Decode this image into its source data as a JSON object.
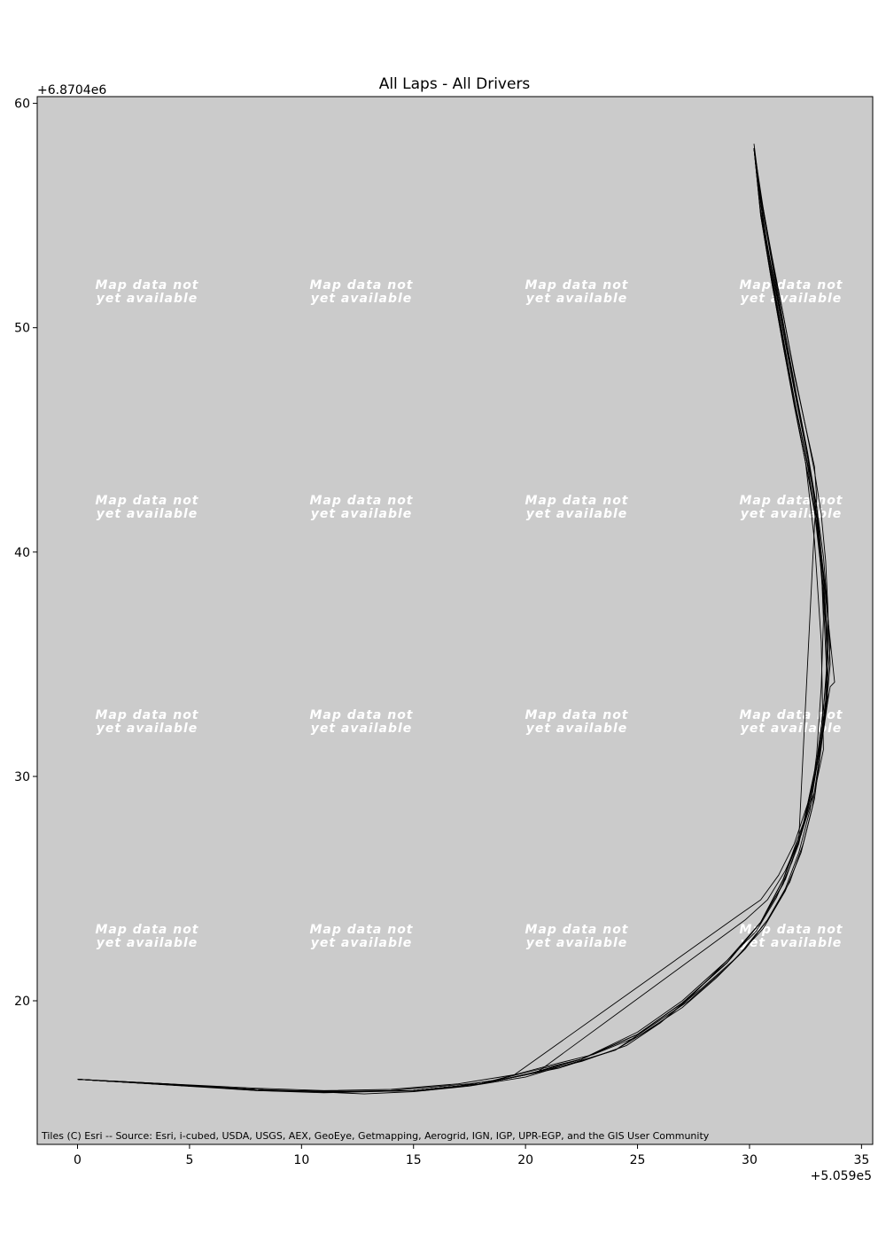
{
  "chart_data": {
    "type": "line",
    "title": "All Laps - All Drivers",
    "xlabel": "",
    "ylabel": "",
    "x_offset_label": "+5.059e5",
    "y_offset_label": "+6.8704e6",
    "xlim": [
      -1.8,
      35.5
    ],
    "ylim": [
      13.6,
      60.3
    ],
    "x_ticks": [
      0,
      5,
      10,
      15,
      20,
      25,
      30,
      35
    ],
    "y_ticks": [
      20,
      30,
      40,
      50,
      60
    ],
    "grid": false,
    "background_color": "#cbcbcb",
    "line_color": "#000000",
    "basemap_tile_text": [
      "Map data not",
      "yet available"
    ],
    "attribution": "Tiles (C) Esri -- Source: Esri, i-cubed, USDA, USGS, AEX, GeoEye, Getmapping, Aerogrid, IGN, IGP, UPR-EGP, and the GIS User Community",
    "series": [
      {
        "x": [
          0.0,
          4.0,
          8.0,
          11.0,
          14.0,
          17.0,
          19.5,
          21.0,
          23.0,
          25.0,
          27.0,
          28.5,
          29.8,
          30.8,
          31.6,
          32.2,
          32.7,
          33.0,
          33.3,
          33.5,
          33.5,
          33.4,
          33.2,
          32.9,
          32.5,
          32.0,
          31.5,
          31.0,
          30.5,
          30.2
        ],
        "y": [
          16.5,
          16.3,
          16.1,
          16.0,
          16.05,
          16.3,
          16.7,
          17.1,
          17.6,
          18.4,
          19.7,
          21.0,
          22.3,
          23.6,
          25.0,
          26.6,
          28.5,
          30.5,
          33.0,
          35.3,
          37.5,
          39.6,
          41.7,
          43.6,
          45.6,
          48.0,
          50.6,
          53.1,
          55.8,
          58.2
        ]
      },
      {
        "x": [
          0.0,
          4.0,
          8.0,
          11.0,
          13.0,
          15.0,
          17.0,
          19.5,
          21.5,
          24.0,
          26.0,
          27.5,
          29.0,
          30.3,
          31.2,
          31.9,
          32.5,
          33.0,
          33.4,
          33.6,
          33.5,
          33.3,
          33.0,
          32.6,
          32.1,
          31.6,
          31.1,
          30.6,
          30.2
        ],
        "y": [
          16.5,
          16.25,
          16.0,
          15.9,
          15.95,
          16.0,
          16.2,
          16.6,
          17.0,
          17.8,
          19.0,
          20.3,
          21.8,
          23.1,
          24.6,
          26.2,
          28.2,
          30.4,
          32.8,
          35.0,
          37.3,
          39.8,
          42.0,
          44.2,
          46.7,
          49.3,
          52.0,
          54.8,
          58.0
        ]
      },
      {
        "x": [
          0.0,
          4.0,
          8.0,
          10.5,
          12.8,
          15.0,
          17.5,
          20.0,
          22.0,
          24.0,
          25.5,
          27.3,
          29.0,
          30.6,
          31.6,
          32.3,
          32.8,
          33.1,
          33.4,
          33.6,
          33.4,
          33.1,
          32.8,
          32.4,
          31.9,
          31.4,
          30.8,
          30.3
        ],
        "y": [
          16.5,
          16.3,
          16.0,
          15.95,
          15.85,
          15.95,
          16.2,
          16.6,
          17.2,
          17.8,
          18.8,
          20.0,
          21.5,
          23.2,
          24.9,
          26.6,
          28.6,
          30.7,
          33.2,
          35.8,
          38.3,
          40.8,
          43.1,
          45.4,
          47.9,
          50.6,
          53.6,
          57.0
        ]
      },
      {
        "x": [
          0.0,
          4.0,
          8.0,
          11.0,
          14.0,
          17.5,
          19.0,
          20.8,
          22.5,
          24.5,
          26.0,
          27.8,
          29.5,
          30.8,
          31.8,
          32.4,
          32.9,
          33.2,
          33.5,
          33.4,
          33.2,
          32.9,
          32.5,
          32.0,
          31.5,
          31.0,
          30.5,
          30.2
        ],
        "y": [
          16.5,
          16.3,
          16.05,
          15.95,
          16.0,
          16.3,
          16.5,
          16.9,
          17.3,
          18.0,
          19.0,
          20.5,
          22.0,
          23.6,
          25.3,
          27.0,
          29.0,
          31.3,
          34.0,
          36.8,
          39.2,
          41.8,
          44.0,
          46.5,
          49.2,
          52.0,
          55.0,
          58.0
        ]
      },
      {
        "x": [
          0.0,
          5.0,
          9.0,
          12.0,
          15.0,
          18.0,
          19.5,
          29.5,
          30.5,
          31.3,
          32.0,
          32.6,
          33.0,
          33.3,
          33.5,
          33.3,
          33.0,
          32.6,
          32.1,
          31.6,
          31.1,
          30.6,
          30.2
        ],
        "y": [
          16.5,
          16.2,
          16.0,
          15.95,
          16.0,
          16.3,
          16.7,
          23.8,
          24.5,
          25.6,
          27.0,
          28.8,
          30.7,
          33.0,
          35.6,
          38.4,
          41.2,
          43.8,
          46.3,
          49.0,
          51.8,
          54.8,
          58.0
        ]
      },
      {
        "x": [
          0.0,
          5.0,
          9.0,
          12.0,
          15.0,
          18.0,
          20.5,
          29.8,
          30.8,
          31.6,
          32.3,
          32.8,
          33.1,
          33.4,
          33.5,
          33.3,
          33.0,
          32.5,
          32.0,
          31.5,
          31.0,
          30.5,
          30.2
        ],
        "y": [
          16.5,
          16.2,
          16.0,
          15.95,
          16.0,
          16.3,
          16.8,
          23.6,
          24.5,
          25.8,
          27.4,
          29.2,
          31.0,
          33.4,
          36.0,
          38.8,
          41.5,
          44.0,
          46.6,
          49.2,
          52.0,
          55.0,
          58.0
        ]
      },
      {
        "x": [
          0.0,
          5.0,
          9.0,
          12.5,
          15.5,
          18.0,
          20.0,
          22.5,
          25.0,
          27.0,
          29.0,
          30.5,
          31.5,
          32.2,
          32.6,
          33.0,
          33.3,
          33.5,
          33.6,
          33.8,
          33.4,
          33.0,
          32.5,
          32.0,
          31.5,
          31.0,
          30.5,
          30.2
        ],
        "y": [
          16.5,
          16.2,
          16.0,
          15.95,
          16.0,
          16.3,
          16.8,
          17.4,
          18.6,
          20.0,
          21.8,
          23.5,
          25.2,
          27.0,
          28.8,
          30.6,
          32.0,
          33.4,
          34.0,
          34.2,
          38.0,
          42.0,
          44.4,
          46.8,
          49.4,
          52.2,
          55.2,
          58.0
        ]
      },
      {
        "x": [
          0.0,
          5.0,
          9.0,
          12.0,
          15.0,
          18.0,
          20.0,
          22.5,
          25.0,
          27.0,
          29.0,
          30.5,
          31.6,
          32.3,
          32.8,
          33.0,
          33.2,
          33.3,
          33.2,
          33.0,
          32.6,
          32.1,
          31.6,
          31.1,
          30.6,
          30.2
        ],
        "y": [
          16.5,
          16.2,
          16.0,
          15.95,
          16.0,
          16.3,
          16.7,
          17.4,
          18.5,
          19.9,
          21.7,
          23.5,
          25.4,
          27.4,
          29.4,
          31.0,
          34.0,
          37.0,
          39.5,
          42.0,
          44.4,
          47.0,
          49.7,
          52.5,
          55.4,
          58.0
        ]
      },
      {
        "x": [
          0.0,
          5.0,
          9.0,
          12.0,
          15.0,
          18.0,
          20.0,
          22.5,
          25.0,
          27.0,
          29.0,
          30.5,
          31.5,
          32.3,
          32.9,
          33.3,
          33.2,
          32.9,
          32.5,
          32.0,
          31.5,
          31.0,
          30.5,
          30.2
        ],
        "y": [
          16.5,
          16.2,
          16.0,
          15.95,
          16.0,
          16.3,
          16.7,
          17.4,
          18.5,
          19.9,
          21.7,
          23.5,
          25.4,
          27.4,
          29.3,
          31.2,
          36.0,
          40.5,
          44.0,
          46.6,
          49.3,
          52.1,
          55.1,
          58.0
        ]
      },
      {
        "x": [
          0.0,
          5.0,
          9.0,
          12.0,
          15.0,
          18.0,
          20.0,
          22.5,
          25.0,
          27.0,
          29.0,
          30.5,
          31.5,
          32.0,
          32.5,
          33.0,
          33.5,
          33.3,
          33.0,
          32.6,
          32.1,
          31.6,
          31.1,
          30.6,
          30.2
        ],
        "y": [
          16.5,
          16.2,
          16.0,
          15.95,
          16.0,
          16.3,
          16.7,
          17.4,
          18.5,
          19.9,
          21.7,
          23.5,
          25.4,
          26.8,
          28.2,
          30.6,
          33.4,
          37.8,
          41.6,
          44.2,
          46.8,
          49.5,
          52.3,
          55.2,
          58.0
        ]
      },
      {
        "x": [
          0.0,
          5.0,
          9.0,
          12.0,
          15.0,
          18.0,
          20.0,
          22.5,
          25.0,
          27.0,
          29.0,
          30.5,
          31.5,
          32.2,
          32.9,
          33.0,
          32.9,
          32.5,
          32.0,
          31.5,
          31.0,
          30.5,
          30.2
        ],
        "y": [
          16.5,
          16.2,
          16.0,
          15.95,
          16.0,
          16.3,
          16.7,
          17.4,
          18.5,
          19.9,
          21.7,
          23.5,
          25.4,
          27.2,
          41.2,
          42.4,
          43.8,
          45.6,
          47.9,
          50.6,
          53.2,
          55.9,
          58.0
        ]
      }
    ]
  }
}
